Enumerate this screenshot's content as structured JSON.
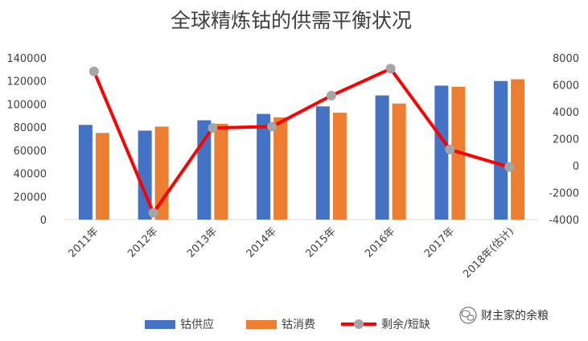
{
  "chart_data": {
    "type": "bar",
    "title": "全球精炼钴的供需平衡状况",
    "categories": [
      "2011年",
      "2012年",
      "2013年",
      "2014年",
      "2015年",
      "2016年",
      "2017年",
      "2018年(估计)"
    ],
    "series": [
      {
        "name": "钴供应",
        "type": "bar",
        "axis": "left",
        "color": "#4472C4",
        "values": [
          82000,
          77000,
          86000,
          91500,
          98000,
          107500,
          116000,
          120000
        ]
      },
      {
        "name": "钴消费",
        "type": "bar",
        "axis": "left",
        "color": "#ED7D31",
        "values": [
          75000,
          80500,
          83000,
          88500,
          92500,
          100500,
          115000,
          121500
        ]
      },
      {
        "name": "剩余/短缺",
        "type": "line",
        "axis": "right",
        "color": "#FF0000",
        "marker_color": "#A5A5A5",
        "values": [
          7000,
          -3500,
          2800,
          2900,
          5200,
          7200,
          1200,
          -100
        ]
      }
    ],
    "y_left": {
      "min": 0,
      "max": 140000,
      "ticks": [
        "0",
        "20000",
        "40000",
        "60000",
        "80000",
        "100000",
        "120000",
        "140000"
      ]
    },
    "y_right": {
      "min": -4000,
      "max": 8000,
      "ticks": [
        "-4000",
        "-2000",
        "0",
        "2000",
        "4000",
        "6000",
        "8000"
      ]
    },
    "grid": false,
    "legend_position": "bottom"
  },
  "watermark": {
    "text": "财主家的余粮",
    "icon": "wechat-icon"
  }
}
